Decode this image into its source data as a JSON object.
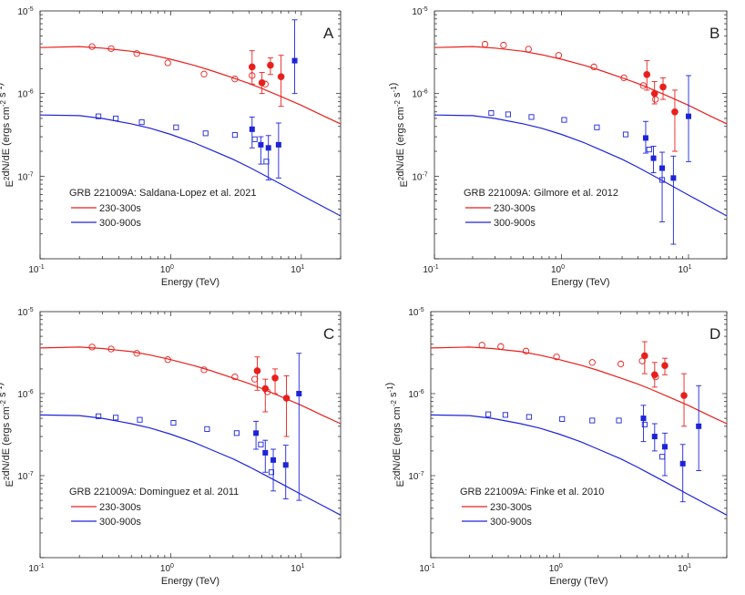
{
  "chart_data": [
    {
      "type": "scatter",
      "panel_label": "A",
      "legend_title": "GRB 221009A: Saldana-Lopez et al. 2021",
      "xlabel": "Energy (TeV)",
      "ylabel": "E^2dN/dE (ergs cm^-2 s^-1)",
      "xscale": "log",
      "yscale": "log",
      "xlim": [
        0.1,
        20
      ],
      "ylim": [
        1e-08,
        1e-05
      ],
      "xticks": [
        "10-1",
        "100",
        "101"
      ],
      "yticks": [
        "10-5",
        "10-6",
        "10-7"
      ],
      "series": [
        {
          "name": "230-300s",
          "color": "#e8201c",
          "model": {
            "x": [
              0.1,
              0.2,
              0.3,
              0.5,
              0.7,
              1,
              1.5,
              2,
              3,
              4,
              5,
              7,
              10,
              15,
              20
            ],
            "y": [
              3.6e-06,
              3.7e-06,
              3.55e-06,
              3.25e-06,
              2.95e-06,
              2.6e-06,
              2.2e-06,
              1.92e-06,
              1.55e-06,
              1.32e-06,
              1.15e-06,
              9.2e-07,
              7.2e-07,
              5.3e-07,
              4.3e-07
            ]
          },
          "intrinsic": {
            "x": [
              0.25,
              0.35,
              0.55,
              0.95,
              1.8,
              3.1,
              4.2,
              5.3
            ],
            "y": [
              3.7e-06,
              3.5e-06,
              3.05e-06,
              2.35e-06,
              1.72e-06,
              1.5e-06,
              1.65e-06,
              1.3e-06
            ]
          },
          "observed": {
            "x": [
              4.2,
              5.0,
              5.8,
              7.0
            ],
            "y": [
              2.1e-06,
              1.35e-06,
              2.2e-06,
              1.6e-06
            ],
            "lo": [
              1.3e-06,
              1e-06,
              1.7e-06,
              7e-07
            ],
            "hi": [
              3.3e-06,
              1.8e-06,
              2.7e-06,
              2.9e-06
            ]
          }
        },
        {
          "name": "300-900s",
          "color": "#1d24d8",
          "model": {
            "x": [
              0.1,
              0.2,
              0.3,
              0.5,
              0.7,
              1,
              1.5,
              2,
              3,
              4,
              5,
              7,
              10,
              15,
              20
            ],
            "y": [
              5.5e-07,
              5.4e-07,
              5e-07,
              4.3e-07,
              3.8e-07,
              3.2e-07,
              2.55e-07,
              2.1e-07,
              1.6e-07,
              1.28e-07,
              1.06e-07,
              8e-08,
              5.9e-08,
              4.2e-08,
              3.3e-08
            ]
          },
          "intrinsic": {
            "x": [
              0.28,
              0.38,
              0.6,
              1.1,
              1.85,
              3.1,
              4.4,
              5.4
            ],
            "y": [
              5.3e-07,
              5e-07,
              4.5e-07,
              3.9e-07,
              3.3e-07,
              3.15e-07,
              2.8e-07,
              1.5e-07
            ]
          },
          "observed": {
            "x": [
              4.2,
              4.9,
              5.6,
              6.7,
              8.9
            ],
            "y": [
              3.7e-07,
              2.4e-07,
              2.2e-07,
              2.4e-07,
              2.5e-06
            ],
            "lo": [
              2.2e-07,
              1.4e-07,
              9e-08,
              9.5e-08,
              1e-06
            ],
            "hi": [
              5.2e-07,
              3e-07,
              3.1e-07,
              4.4e-07,
              7.8e-06
            ]
          }
        }
      ]
    },
    {
      "type": "scatter",
      "panel_label": "B",
      "legend_title": "GRB 221009A: Gilmore et al. 2012",
      "xlabel": "Energy (TeV)",
      "ylabel": "E^2dN/dE (ergs cm^-2 s^-1)",
      "xscale": "log",
      "yscale": "log",
      "xlim": [
        0.1,
        20
      ],
      "ylim": [
        1e-08,
        1e-05
      ],
      "xticks": [
        "10-1",
        "100",
        "101"
      ],
      "yticks": [
        "10-5",
        "10-6",
        "10-7"
      ],
      "series": [
        {
          "name": "230-300s",
          "color": "#e8201c",
          "model": {
            "x": [
              0.1,
              0.2,
              0.3,
              0.5,
              0.7,
              1,
              1.5,
              2,
              3,
              4,
              5,
              7,
              10,
              15,
              20
            ],
            "y": [
              3.6e-06,
              3.7e-06,
              3.55e-06,
              3.25e-06,
              2.95e-06,
              2.6e-06,
              2.2e-06,
              1.92e-06,
              1.55e-06,
              1.32e-06,
              1.15e-06,
              9.2e-07,
              7.2e-07,
              5.3e-07,
              4.3e-07
            ]
          },
          "intrinsic": {
            "x": [
              0.25,
              0.35,
              0.55,
              0.95,
              1.8,
              3.1,
              4.4,
              5.5
            ],
            "y": [
              3.95e-06,
              3.85e-06,
              3.45e-06,
              2.9e-06,
              2.1e-06,
              1.55e-06,
              1.25e-06,
              8.5e-07
            ]
          },
          "observed": {
            "x": [
              4.7,
              5.4,
              6.3,
              7.8
            ],
            "y": [
              1.7e-06,
              1e-06,
              1.2e-06,
              6e-07
            ],
            "lo": [
              1.1e-06,
              7.5e-07,
              8.5e-07,
              2e-07
            ],
            "hi": [
              2.5e-06,
              1.4e-06,
              1.55e-06,
              1.1e-06
            ]
          }
        },
        {
          "name": "300-900s",
          "color": "#1d24d8",
          "model": {
            "x": [
              0.1,
              0.2,
              0.3,
              0.5,
              0.7,
              1,
              1.5,
              2,
              3,
              4,
              5,
              7,
              10,
              15,
              20
            ],
            "y": [
              5.5e-07,
              5.4e-07,
              5e-07,
              4.3e-07,
              3.8e-07,
              3.2e-07,
              2.55e-07,
              2.1e-07,
              1.6e-07,
              1.28e-07,
              1.06e-07,
              8e-08,
              5.9e-08,
              4.2e-08,
              3.3e-08
            ]
          },
          "intrinsic": {
            "x": [
              0.28,
              0.38,
              0.58,
              1.05,
              1.9,
              3.2,
              4.9,
              6.2
            ],
            "y": [
              5.8e-07,
              5.6e-07,
              5.2e-07,
              4.8e-07,
              3.9e-07,
              3.2e-07,
              2.1e-07,
              9e-08
            ]
          },
          "observed": {
            "x": [
              4.6,
              5.3,
              6.2,
              7.6,
              10.0
            ],
            "y": [
              2.9e-07,
              1.65e-07,
              1.25e-07,
              9.5e-08,
              5.3e-07
            ],
            "lo": [
              1.9e-07,
              1.1e-07,
              2.8e-08,
              1.5e-08,
              1.5e-07
            ],
            "hi": [
              4.6e-07,
              2.3e-07,
              1.95e-07,
              1.75e-07,
              1.65e-06
            ]
          }
        }
      ]
    },
    {
      "type": "scatter",
      "panel_label": "C",
      "legend_title": "GRB 221009A: Dominguez et al. 2011",
      "xlabel": "Energy (TeV)",
      "ylabel": "E^2dN/dE (ergs cm^-2 s^-1)",
      "xscale": "log",
      "yscale": "log",
      "xlim": [
        0.1,
        20
      ],
      "ylim": [
        1e-08,
        1e-05
      ],
      "xticks": [
        "10-1",
        "100",
        "101"
      ],
      "yticks": [
        "10-5",
        "10-6",
        "10-7"
      ],
      "series": [
        {
          "name": "230-300s",
          "color": "#e8201c",
          "model": {
            "x": [
              0.1,
              0.2,
              0.3,
              0.5,
              0.7,
              1,
              1.5,
              2,
              3,
              4,
              5,
              7,
              10,
              15,
              20
            ],
            "y": [
              3.6e-06,
              3.7e-06,
              3.55e-06,
              3.25e-06,
              2.95e-06,
              2.6e-06,
              2.2e-06,
              1.92e-06,
              1.55e-06,
              1.32e-06,
              1.15e-06,
              9.2e-07,
              7.2e-07,
              5.3e-07,
              4.3e-07
            ]
          },
          "intrinsic": {
            "x": [
              0.25,
              0.35,
              0.55,
              0.95,
              1.8,
              3.1,
              4.4,
              5.5
            ],
            "y": [
              3.7e-06,
              3.5e-06,
              3.1e-06,
              2.6e-06,
              1.95e-06,
              1.6e-06,
              1.5e-06,
              1.05e-06
            ]
          },
          "observed": {
            "x": [
              4.6,
              5.3,
              6.3,
              7.7
            ],
            "y": [
              1.9e-06,
              1.15e-06,
              1.55e-06,
              8.8e-07
            ],
            "lo": [
              1.1e-06,
              6e-07,
              1e-06,
              3e-07
            ],
            "hi": [
              2.8e-06,
              1.5e-06,
              2e-06,
              1.65e-06
            ]
          }
        },
        {
          "name": "300-900s",
          "color": "#1d24d8",
          "model": {
            "x": [
              0.1,
              0.2,
              0.3,
              0.5,
              0.7,
              1,
              1.5,
              2,
              3,
              4,
              5,
              7,
              10,
              15,
              20
            ],
            "y": [
              5.5e-07,
              5.4e-07,
              5e-07,
              4.3e-07,
              3.8e-07,
              3.2e-07,
              2.55e-07,
              2.1e-07,
              1.6e-07,
              1.28e-07,
              1.06e-07,
              8e-08,
              5.9e-08,
              4.2e-08,
              3.3e-08
            ]
          },
          "intrinsic": {
            "x": [
              0.28,
              0.38,
              0.58,
              1.05,
              1.9,
              3.2,
              4.9,
              5.9
            ],
            "y": [
              5.3e-07,
              5.1e-07,
              4.8e-07,
              4.4e-07,
              3.7e-07,
              3.3e-07,
              2.4e-07,
              1.1e-07
            ]
          },
          "observed": {
            "x": [
              4.5,
              5.3,
              6.1,
              7.6,
              9.6
            ],
            "y": [
              3.3e-07,
              1.9e-07,
              1.55e-07,
              1.35e-07,
              1e-06
            ],
            "lo": [
              2.1e-07,
              1.1e-07,
              6.5e-08,
              5.2e-08,
              5e-08
            ],
            "hi": [
              4.6e-07,
              2.7e-07,
              2.1e-07,
              2.35e-07,
              3.1e-06
            ]
          }
        }
      ]
    },
    {
      "type": "scatter",
      "panel_label": "D",
      "legend_title": "GRB 221009A: Finke et al. 2010",
      "xlabel": "Energy (TeV)",
      "ylabel": "E^2dN/dE (ergs cm^-2 s^-1)",
      "xscale": "log",
      "yscale": "log",
      "xlim": [
        0.1,
        20
      ],
      "ylim": [
        1e-08,
        1e-05
      ],
      "xticks": [
        "10-1",
        "100",
        "101"
      ],
      "yticks": [
        "10-5",
        "10-6",
        "10-7"
      ],
      "series": [
        {
          "name": "230-300s",
          "color": "#e8201c",
          "model": {
            "x": [
              0.1,
              0.2,
              0.3,
              0.5,
              0.7,
              1,
              1.5,
              2,
              3,
              4,
              5,
              7,
              10,
              15,
              20
            ],
            "y": [
              3.6e-06,
              3.7e-06,
              3.55e-06,
              3.25e-06,
              2.95e-06,
              2.6e-06,
              2.2e-06,
              1.92e-06,
              1.55e-06,
              1.32e-06,
              1.15e-06,
              9.2e-07,
              7.2e-07,
              5.3e-07,
              4.3e-07
            ]
          },
          "intrinsic": {
            "x": [
              0.25,
              0.35,
              0.55,
              0.95,
              1.8,
              3.0,
              4.4,
              5.6
            ],
            "y": [
              3.9e-06,
              3.75e-06,
              3.3e-06,
              2.8e-06,
              2.4e-06,
              2.3e-06,
              2.5e-06,
              1.6e-06
            ]
          },
          "observed": {
            "x": [
              4.6,
              5.5,
              6.6,
              9.3
            ],
            "y": [
              2.9e-06,
              1.7e-06,
              2.2e-06,
              9.5e-07
            ],
            "lo": [
              1.75e-06,
              1.2e-06,
              1.7e-06,
              4e-07
            ],
            "hi": [
              4.3e-06,
              2.4e-06,
              2.7e-06,
              1.75e-06
            ]
          }
        },
        {
          "name": "300-900s",
          "color": "#1d24d8",
          "model": {
            "x": [
              0.1,
              0.2,
              0.3,
              0.5,
              0.7,
              1,
              1.5,
              2,
              3,
              4,
              5,
              7,
              10,
              15,
              20
            ],
            "y": [
              5.5e-07,
              5.4e-07,
              5e-07,
              4.3e-07,
              3.8e-07,
              3.2e-07,
              2.55e-07,
              2.1e-07,
              1.6e-07,
              1.28e-07,
              1.06e-07,
              8e-08,
              5.9e-08,
              4.2e-08,
              3.3e-08
            ]
          },
          "intrinsic": {
            "x": [
              0.28,
              0.38,
              0.58,
              1.05,
              1.8,
              2.9,
              4.6,
              6.3
            ],
            "y": [
              5.6e-07,
              5.5e-07,
              5.2e-07,
              4.9e-07,
              4.7e-07,
              4.7e-07,
              4.2e-07,
              1.7e-07
            ]
          },
          "observed": {
            "x": [
              4.5,
              5.5,
              6.6,
              9.1,
              12.1
            ],
            "y": [
              5e-07,
              3e-07,
              2.25e-07,
              1.4e-07,
              4e-07
            ],
            "lo": [
              2.6e-07,
              2e-07,
              1e-07,
              4.8e-08,
              1.15e-07
            ],
            "hi": [
              7.2e-07,
              4.3e-07,
              3.3e-07,
              2.4e-07,
              1.25e-06
            ]
          }
        }
      ]
    }
  ]
}
